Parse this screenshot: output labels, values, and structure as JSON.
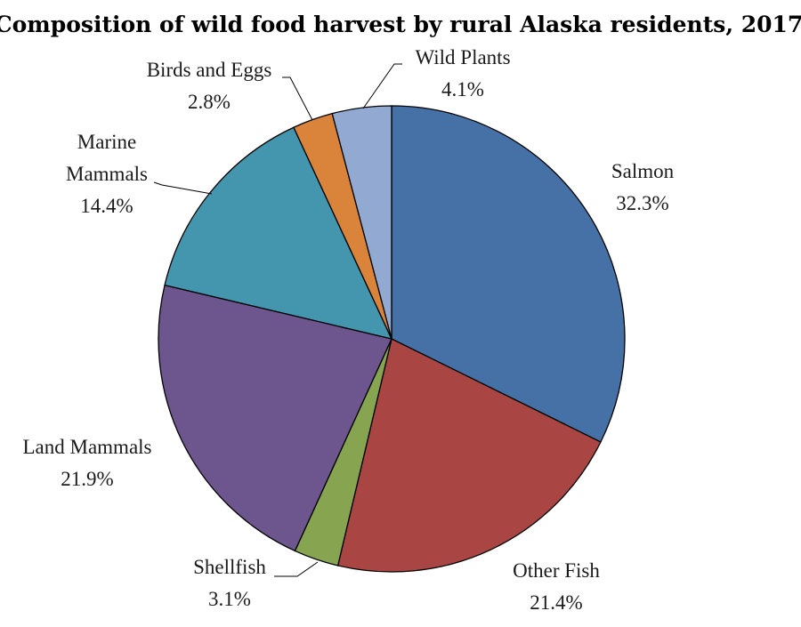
{
  "chart_data": {
    "type": "pie",
    "title": "Composition of wild food harvest by rural Alaska residents, 2017",
    "slices": [
      {
        "label": "Salmon",
        "value": 32.3,
        "display": "32.3%",
        "color": "#4671a6"
      },
      {
        "label": "Other Fish",
        "value": 21.4,
        "display": "21.4%",
        "color": "#a94644"
      },
      {
        "label": "Shellfish",
        "value": 3.1,
        "display": "3.1%",
        "color": "#87a551"
      },
      {
        "label": "Land Mammals",
        "value": 21.9,
        "display": "21.9%",
        "color": "#6d558d"
      },
      {
        "label": "Marine Mammals",
        "label_lines": [
          "Marine",
          "Mammals"
        ],
        "value": 14.4,
        "display": "14.4%",
        "color": "#4396ad"
      },
      {
        "label": "Birds and Eggs",
        "value": 2.8,
        "display": "2.8%",
        "color": "#da843b"
      },
      {
        "label": "Wild Plants",
        "value": 4.1,
        "display": "4.1%",
        "color": "#92a9d1"
      }
    ],
    "start_angle": "12 o'clock",
    "direction": "clockwise",
    "legend": "none"
  }
}
